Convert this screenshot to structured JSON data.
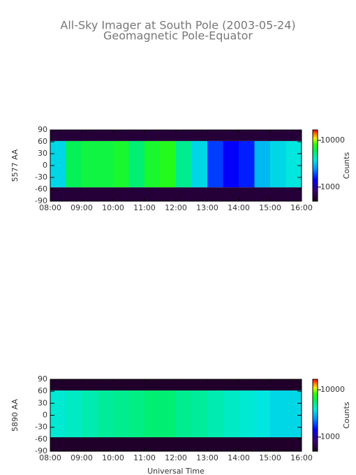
{
  "chart_data": [
    {
      "type": "heatmap",
      "title": "All-Sky Imager at South Pole (2003-05-24)",
      "subtitle": "Geomagnetic Pole-Equator",
      "ylabel": "5577 AA",
      "colorbar_label": "Counts",
      "x_bins": [
        8,
        8.5,
        9,
        9.5,
        10,
        10.5,
        11,
        11.5,
        12,
        12.5,
        13,
        13.5,
        14,
        14.5,
        15,
        15.5,
        16
      ],
      "y_bins": [
        -90,
        -55,
        62,
        90
      ],
      "values": [
        [
          600,
          600,
          600,
          600,
          600,
          600,
          600,
          600,
          600,
          600,
          600,
          600,
          600,
          600,
          600,
          600
        ],
        [
          3500,
          6000,
          6500,
          6500,
          7000,
          5500,
          7000,
          7500,
          5000,
          3500,
          1800,
          1400,
          1600,
          3000,
          3500,
          3800
        ],
        [
          600,
          600,
          600,
          600,
          600,
          600,
          600,
          600,
          600,
          600,
          600,
          600,
          600,
          600,
          600,
          600
        ]
      ],
      "xlim": [
        8,
        16
      ],
      "ylim": [
        -90,
        90
      ],
      "xticks": [
        {
          "value": 8,
          "label": "08:00"
        },
        {
          "value": 9,
          "label": "09:00"
        },
        {
          "value": 10,
          "label": "10:00"
        },
        {
          "value": 11,
          "label": "11:00"
        },
        {
          "value": 12,
          "label": "12:00"
        },
        {
          "value": 13,
          "label": "13:00"
        },
        {
          "value": 14,
          "label": "14:00"
        },
        {
          "value": 15,
          "label": "15:00"
        },
        {
          "value": 16,
          "label": "16:00"
        }
      ],
      "yticks": [
        -90,
        -60,
        -30,
        0,
        30,
        60,
        90
      ],
      "clim": [
        500,
        16700
      ],
      "cticks": [
        1000,
        10000
      ],
      "log_color": true
    },
    {
      "type": "heatmap",
      "ylabel": "5890 AA",
      "colorbar_label": "Counts",
      "xlabel": "Universal Time",
      "x_bins": [
        8,
        8.5,
        9,
        9.5,
        10,
        10.5,
        11,
        11.5,
        12,
        12.5,
        13,
        13.5,
        14,
        14.5,
        15,
        15.5,
        16
      ],
      "y_bins": [
        -90,
        -55,
        62,
        90
      ],
      "values": [
        [
          550,
          550,
          550,
          550,
          550,
          550,
          550,
          550,
          550,
          550,
          550,
          550,
          550,
          550,
          550,
          550
        ],
        [
          4000,
          4200,
          4500,
          4800,
          5000,
          5200,
          5500,
          5500,
          5000,
          4800,
          4500,
          4200,
          4000,
          3800,
          3500,
          3500
        ],
        [
          550,
          550,
          550,
          550,
          550,
          550,
          550,
          550,
          550,
          550,
          550,
          550,
          550,
          550,
          550,
          550
        ]
      ],
      "xlim": [
        8,
        16
      ],
      "ylim": [
        -90,
        90
      ],
      "xticks": [
        {
          "value": 8,
          "label": "08:00"
        },
        {
          "value": 9,
          "label": "09:00"
        },
        {
          "value": 10,
          "label": "10:00"
        },
        {
          "value": 11,
          "label": "11:00"
        },
        {
          "value": 12,
          "label": "12:00"
        },
        {
          "value": 13,
          "label": "13:00"
        },
        {
          "value": 14,
          "label": "14:00"
        },
        {
          "value": 15,
          "label": "15:00"
        },
        {
          "value": 16,
          "label": "16:00"
        }
      ],
      "yticks": [
        -90,
        -60,
        -30,
        0,
        30,
        60,
        90
      ],
      "clim": [
        500,
        16700
      ],
      "cticks": [
        1000,
        10000
      ],
      "log_color": true
    }
  ]
}
